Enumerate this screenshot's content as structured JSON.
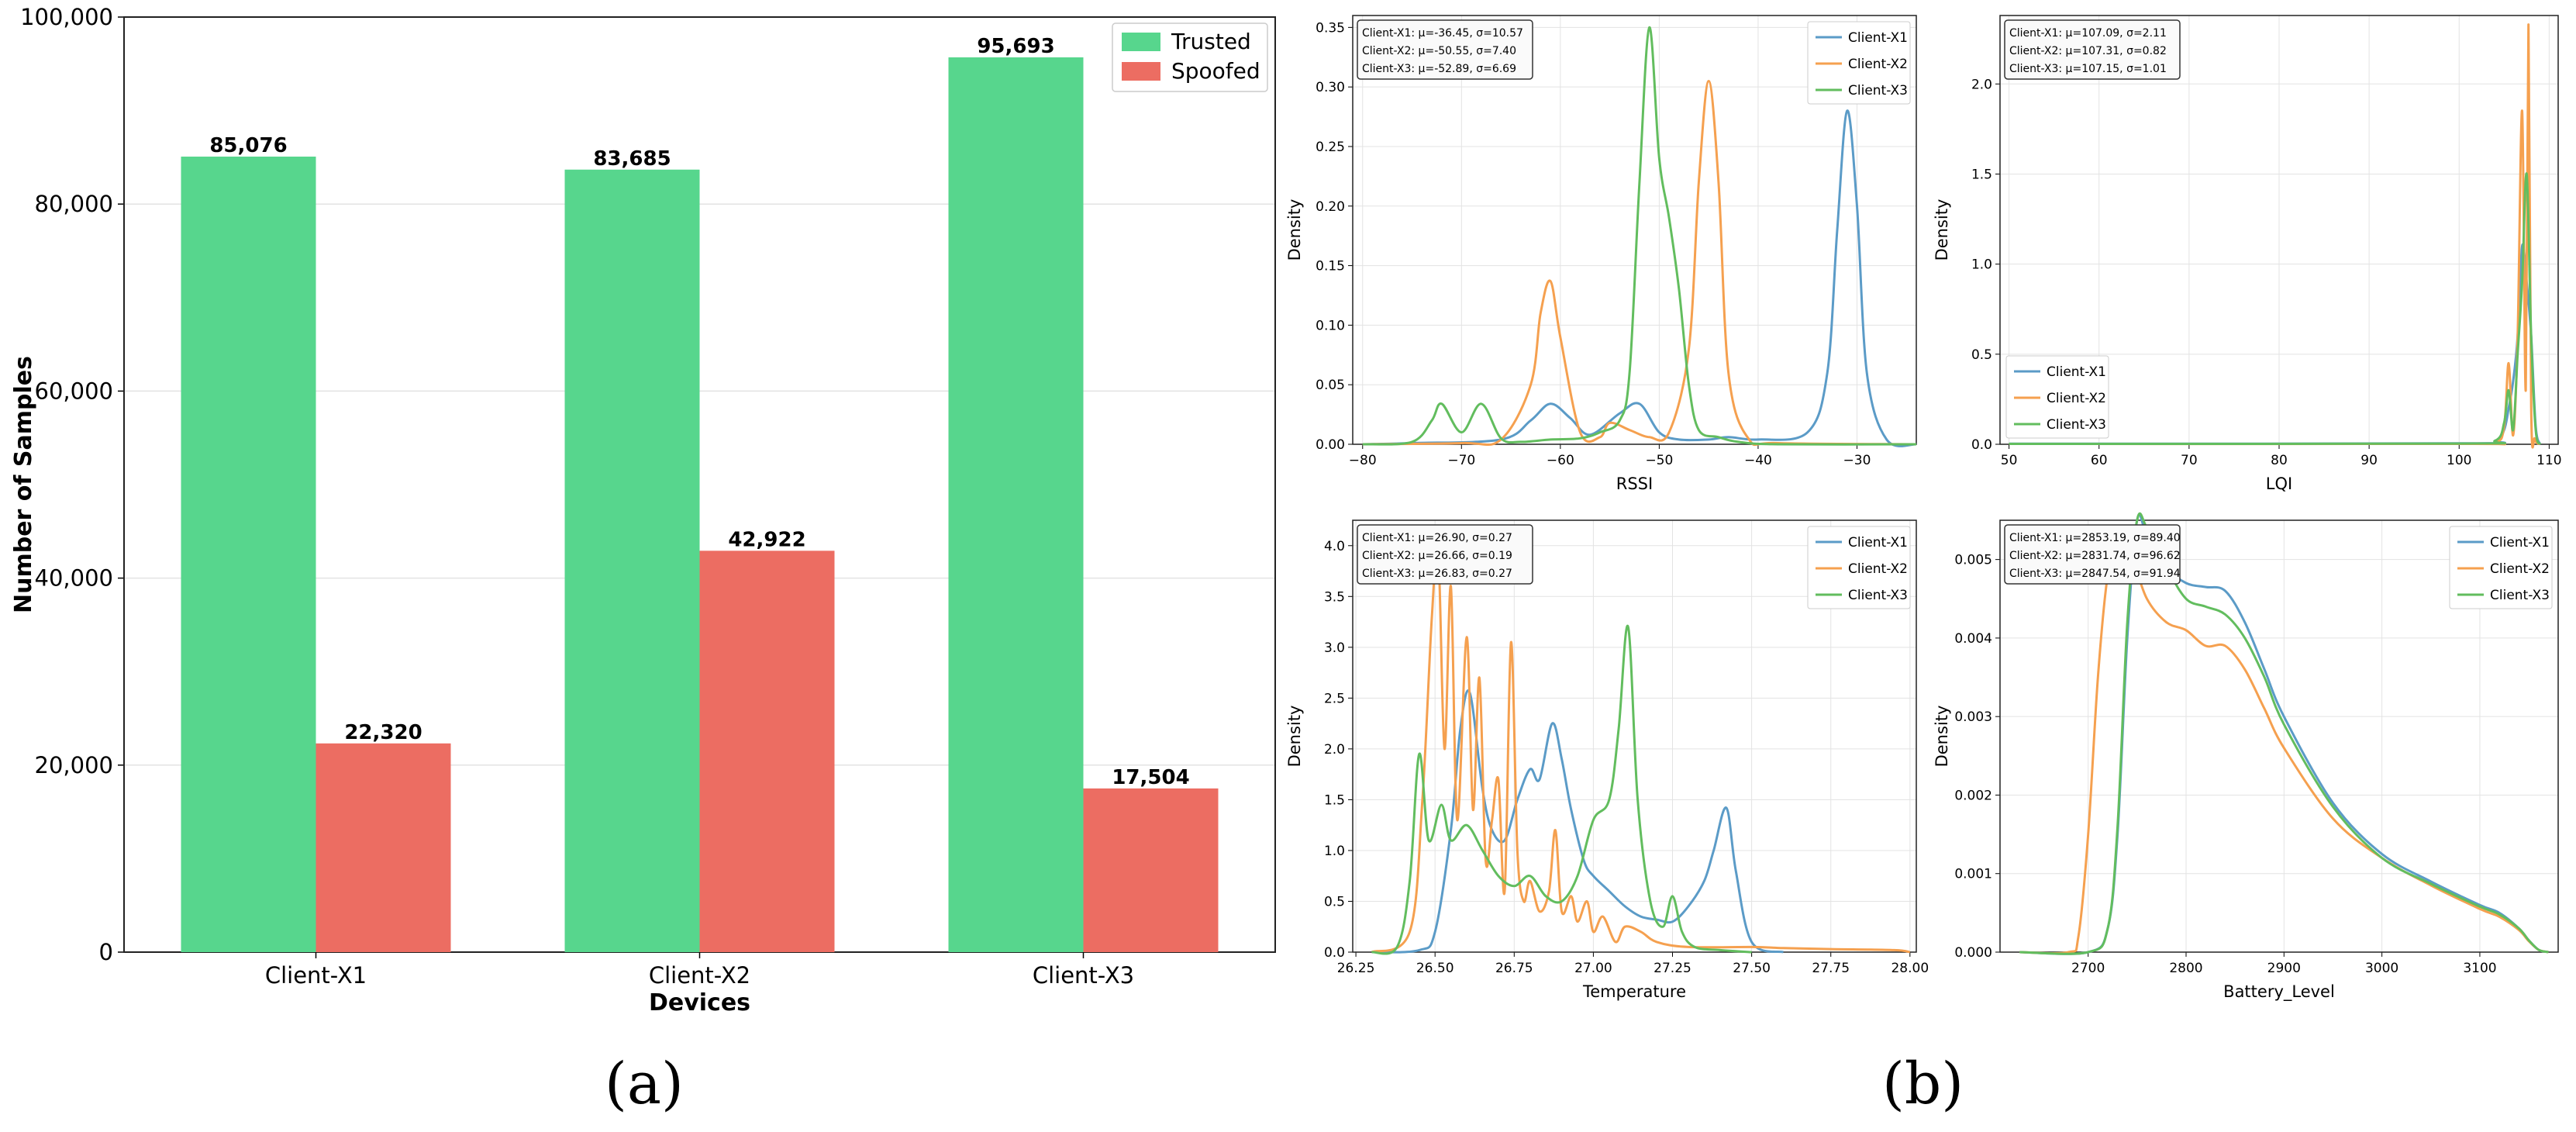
{
  "colors": {
    "trusted": "#57d68d",
    "spoofed": "#ec6d62",
    "x1": "#5b9bc7",
    "x2": "#f5a04f",
    "x3": "#62bd5e",
    "grid": "#e3e3e3"
  },
  "captions": {
    "a": "(a)",
    "b": "(b)"
  },
  "chart_data": [
    {
      "type": "bar",
      "title": "",
      "xlabel": "Devices",
      "ylabel": "Number of Samples",
      "categories": [
        "Client-X1",
        "Client-X2",
        "Client-X3"
      ],
      "series": [
        {
          "name": "Trusted",
          "values": [
            85076,
            83685,
            95693
          ]
        },
        {
          "name": "Spoofed",
          "values": [
            22320,
            42922,
            17504
          ]
        }
      ],
      "data_labels": [
        [
          "85,076",
          "83,685",
          "95,693"
        ],
        [
          "22,320",
          "42,922",
          "17,504"
        ]
      ],
      "ylim": [
        0,
        100000
      ],
      "yticks": [
        0,
        20000,
        40000,
        60000,
        80000,
        100000
      ],
      "ytick_labels": [
        "0",
        "20,000",
        "40,000",
        "60,000",
        "80,000",
        "100,000"
      ],
      "legend": "top-right",
      "grid": true
    },
    {
      "type": "line",
      "xlabel": "RSSI",
      "ylabel": "Density",
      "xlim": [
        -81,
        -24
      ],
      "ylim": [
        0,
        0.36
      ],
      "xticks": [
        -80,
        -70,
        -60,
        -50,
        -40,
        -30
      ],
      "xtick_labels": [
        "−80",
        "−70",
        "−60",
        "−50",
        "−40",
        "−30"
      ],
      "yticks": [
        0,
        0.05,
        0.1,
        0.15,
        0.2,
        0.25,
        0.3,
        0.35
      ],
      "ytick_labels": [
        "0.00",
        "0.05",
        "0.10",
        "0.15",
        "0.20",
        "0.25",
        "0.30",
        "0.35"
      ],
      "stats": [
        "Client-X1: μ=-36.45, σ=10.57",
        "Client-X2: μ=-50.55, σ=7.40",
        "Client-X3: μ=-52.89, σ=6.69"
      ],
      "legend": "top-right",
      "series": [
        {
          "name": "Client-X1",
          "x": [
            -80,
            -75,
            -66,
            -63,
            -61,
            -59,
            -57,
            -54,
            -52,
            -50,
            -48,
            -45,
            -43,
            -40,
            -35,
            -33,
            -32,
            -31,
            -30,
            -29,
            -27,
            -24
          ],
          "y": [
            0,
            0.001,
            0.004,
            0.02,
            0.034,
            0.022,
            0.008,
            0.026,
            0.034,
            0.01,
            0.004,
            0.004,
            0.006,
            0.004,
            0.01,
            0.06,
            0.18,
            0.28,
            0.2,
            0.06,
            0.004,
            0
          ]
        },
        {
          "name": "Client-X2",
          "x": [
            -80,
            -70,
            -66,
            -63,
            -62,
            -61,
            -60,
            -58,
            -56,
            -55,
            -53,
            -51,
            -49,
            -47,
            -46,
            -45,
            -44,
            -43,
            -41,
            -38,
            -24
          ],
          "y": [
            0,
            0.001,
            0.004,
            0.05,
            0.11,
            0.137,
            0.09,
            0.01,
            0.006,
            0.018,
            0.012,
            0.006,
            0.01,
            0.08,
            0.22,
            0.305,
            0.22,
            0.06,
            0.005,
            0.001,
            0
          ]
        },
        {
          "name": "Client-X3",
          "x": [
            -80,
            -75,
            -73,
            -72,
            -70,
            -68,
            -66,
            -64,
            -61,
            -58,
            -56,
            -54,
            -53,
            -52,
            -51,
            -50,
            -49,
            -48,
            -47,
            -46,
            -44,
            -42,
            -38,
            -24
          ],
          "y": [
            0,
            0.002,
            0.02,
            0.034,
            0.01,
            0.034,
            0.005,
            0.002,
            0.004,
            0.005,
            0.01,
            0.02,
            0.06,
            0.22,
            0.35,
            0.24,
            0.19,
            0.13,
            0.05,
            0.012,
            0.006,
            0.002,
            0,
            0
          ]
        }
      ]
    },
    {
      "type": "line",
      "xlabel": "LQI",
      "ylabel": "Density",
      "xlim": [
        49,
        111
      ],
      "ylim": [
        0,
        2.38
      ],
      "xticks": [
        50,
        60,
        70,
        80,
        90,
        100,
        110
      ],
      "xtick_labels": [
        "50",
        "60",
        "70",
        "80",
        "90",
        "100",
        "110"
      ],
      "yticks": [
        0,
        0.5,
        1.0,
        1.5,
        2.0
      ],
      "ytick_labels": [
        "0.0",
        "0.5",
        "1.0",
        "1.5",
        "2.0"
      ],
      "stats": [
        "Client-X1: μ=107.09, σ=2.11",
        "Client-X2: μ=107.31, σ=0.82",
        "Client-X3: μ=107.15, σ=1.01"
      ],
      "legend": "bottom-left",
      "series": [
        {
          "name": "Client-X1",
          "x": [
            50,
            100,
            104,
            105,
            105.5,
            106,
            106.5,
            107,
            107.5,
            108,
            108.5,
            109
          ],
          "y": [
            0.003,
            0.005,
            0.02,
            0.08,
            0.2,
            0.35,
            0.6,
            1.1,
            0.9,
            0.6,
            0.1,
            0
          ]
        },
        {
          "name": "Client-X2",
          "x": [
            50,
            100,
            104,
            105,
            105.5,
            106,
            106.5,
            107,
            107.4,
            107.7,
            108,
            108.4,
            109
          ],
          "y": [
            0.002,
            0.002,
            0.01,
            0.1,
            0.45,
            0.05,
            0.6,
            1.85,
            0.3,
            2.33,
            0.2,
            0.03,
            0
          ]
        },
        {
          "name": "Client-X3",
          "x": [
            50,
            100,
            104,
            105,
            105.5,
            106,
            106.5,
            107,
            107.5,
            108,
            108.5,
            109
          ],
          "y": [
            0.002,
            0.004,
            0.02,
            0.12,
            0.3,
            0.08,
            0.5,
            0.9,
            1.5,
            0.6,
            0.08,
            0
          ]
        }
      ]
    },
    {
      "type": "line",
      "xlabel": "Temperature",
      "ylabel": "Density",
      "xlim": [
        26.24,
        28.02
      ],
      "ylim": [
        0,
        4.25
      ],
      "xticks": [
        26.25,
        26.5,
        26.75,
        27.0,
        27.25,
        27.5,
        27.75,
        28.0
      ],
      "xtick_labels": [
        "26.25",
        "26.50",
        "26.75",
        "27.00",
        "27.25",
        "27.50",
        "27.75",
        "28.00"
      ],
      "yticks": [
        0,
        0.5,
        1.0,
        1.5,
        2.0,
        2.5,
        3.0,
        3.5,
        4.0
      ],
      "ytick_labels": [
        "0.0",
        "0.5",
        "1.0",
        "1.5",
        "2.0",
        "2.5",
        "3.0",
        "3.5",
        "4.0"
      ],
      "stats": [
        "Client-X1: μ=26.90, σ=0.27",
        "Client-X2: μ=26.66, σ=0.19",
        "Client-X3: μ=26.83, σ=0.27"
      ],
      "legend": "top-right",
      "series": [
        {
          "name": "Client-X1",
          "x": [
            26.3,
            26.45,
            26.5,
            26.55,
            26.58,
            26.61,
            26.65,
            26.68,
            26.72,
            26.76,
            26.8,
            26.83,
            26.87,
            26.9,
            26.93,
            26.97,
            27.0,
            27.05,
            27.1,
            27.15,
            27.2,
            27.25,
            27.3,
            27.35,
            27.38,
            27.42,
            27.45,
            27.5,
            27.6
          ],
          "y": [
            0,
            0.02,
            0.2,
            1.2,
            2.2,
            2.55,
            1.6,
            1.2,
            1.1,
            1.5,
            1.8,
            1.7,
            2.25,
            1.9,
            1.4,
            0.9,
            0.75,
            0.6,
            0.45,
            0.35,
            0.32,
            0.3,
            0.45,
            0.7,
            1.0,
            1.42,
            0.8,
            0.1,
            0
          ]
        },
        {
          "name": "Client-X2",
          "x": [
            26.3,
            26.42,
            26.46,
            26.49,
            26.51,
            26.53,
            26.55,
            26.57,
            26.6,
            26.62,
            26.64,
            26.66,
            26.68,
            26.7,
            26.72,
            26.74,
            26.76,
            26.78,
            26.8,
            26.83,
            26.86,
            26.88,
            26.9,
            26.93,
            26.95,
            26.98,
            27.0,
            27.03,
            27.07,
            27.1,
            27.15,
            27.2,
            27.3,
            27.5,
            27.6,
            27.75,
            27.95,
            28.0
          ],
          "y": [
            0,
            0.2,
            1.5,
            3.3,
            3.95,
            2.0,
            3.6,
            1.3,
            3.1,
            1.4,
            2.7,
            0.9,
            1.3,
            1.7,
            0.6,
            3.05,
            1.0,
            0.5,
            0.7,
            0.4,
            0.6,
            1.2,
            0.4,
            0.55,
            0.3,
            0.5,
            0.2,
            0.35,
            0.1,
            0.25,
            0.2,
            0.1,
            0.05,
            0.05,
            0.04,
            0.03,
            0.02,
            0
          ]
        },
        {
          "name": "Client-X3",
          "x": [
            26.3,
            26.38,
            26.42,
            26.45,
            26.48,
            26.52,
            26.55,
            26.6,
            26.65,
            26.7,
            26.75,
            26.8,
            26.85,
            26.9,
            26.95,
            27.0,
            27.05,
            27.08,
            27.11,
            27.14,
            27.18,
            27.22,
            27.25,
            27.28,
            27.32,
            27.4,
            27.5
          ],
          "y": [
            0,
            0.05,
            0.7,
            1.95,
            1.1,
            1.45,
            1.1,
            1.25,
            1.0,
            0.75,
            0.65,
            0.75,
            0.55,
            0.5,
            0.75,
            1.3,
            1.5,
            2.2,
            3.2,
            1.5,
            0.5,
            0.25,
            0.55,
            0.2,
            0.05,
            0.02,
            0
          ]
        }
      ]
    },
    {
      "type": "line",
      "xlabel": "Battery_Level",
      "ylabel": "Density",
      "xlim": [
        2610,
        3180
      ],
      "ylim": [
        0,
        0.0055
      ],
      "xticks": [
        2700,
        2800,
        2900,
        3000,
        3100
      ],
      "xtick_labels": [
        "2700",
        "2800",
        "2900",
        "3000",
        "3100"
      ],
      "yticks": [
        0,
        0.001,
        0.002,
        0.003,
        0.004,
        0.005
      ],
      "ytick_labels": [
        "0.000",
        "0.001",
        "0.002",
        "0.003",
        "0.004",
        "0.005"
      ],
      "stats": [
        "Client-X1: μ=2853.19, σ=89.40",
        "Client-X2: μ=2831.74, σ=96.62",
        "Client-X3: μ=2847.54, σ=91.94"
      ],
      "legend": "top-right",
      "series": [
        {
          "name": "Client-X1",
          "x": [
            2630,
            2700,
            2720,
            2730,
            2740,
            2750,
            2760,
            2780,
            2800,
            2820,
            2840,
            2860,
            2880,
            2900,
            2950,
            3000,
            3050,
            3100,
            3120,
            3140,
            3150,
            3160,
            3170
          ],
          "y": [
            0,
            0,
            0.0003,
            0.0015,
            0.004,
            0.0055,
            0.0053,
            0.0049,
            0.0047,
            0.00465,
            0.0046,
            0.0042,
            0.0036,
            0.003,
            0.0019,
            0.00125,
            0.0009,
            0.0006,
            0.0005,
            0.0003,
            0.00015,
            3e-05,
            0
          ]
        },
        {
          "name": "Client-X2",
          "x": [
            2630,
            2680,
            2690,
            2700,
            2710,
            2720,
            2730,
            2745,
            2760,
            2780,
            2800,
            2820,
            2840,
            2860,
            2880,
            2900,
            2950,
            3000,
            3050,
            3100,
            3120,
            3140,
            3150,
            3160,
            3170
          ],
          "y": [
            0,
            0,
            0.0002,
            0.0015,
            0.0035,
            0.0048,
            0.0052,
            0.005,
            0.0045,
            0.0042,
            0.0041,
            0.0039,
            0.0039,
            0.0036,
            0.0031,
            0.0026,
            0.0017,
            0.0012,
            0.00085,
            0.00055,
            0.00045,
            0.00028,
            0.00014,
            3e-05,
            0
          ]
        },
        {
          "name": "Client-X3",
          "x": [
            2630,
            2700,
            2720,
            2730,
            2740,
            2750,
            2760,
            2780,
            2800,
            2820,
            2840,
            2860,
            2880,
            2900,
            2950,
            3000,
            3050,
            3100,
            3120,
            3140,
            3150,
            3160,
            3170
          ],
          "y": [
            0,
            0,
            0.0003,
            0.0016,
            0.0042,
            0.0056,
            0.0054,
            0.0049,
            0.0045,
            0.0044,
            0.0043,
            0.004,
            0.0035,
            0.0029,
            0.00185,
            0.0012,
            0.00087,
            0.00058,
            0.00048,
            0.0003,
            0.00015,
            3e-05,
            0
          ]
        }
      ]
    }
  ]
}
